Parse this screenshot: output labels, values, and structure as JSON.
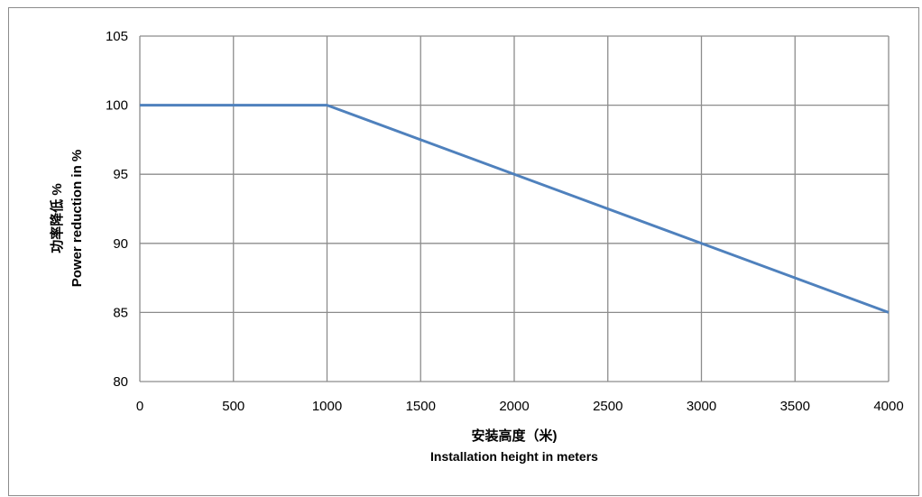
{
  "chart_data": {
    "type": "line",
    "title": "",
    "xlabel": "安装高度（米)",
    "xlabel_en": "Installation height in meters",
    "ylabel": "功率降低 %",
    "ylabel_en": "Power reduction in %",
    "xlim": [
      0,
      4000
    ],
    "ylim": [
      80,
      105
    ],
    "x_ticks": [
      0,
      500,
      1000,
      1500,
      2000,
      2500,
      3000,
      3500,
      4000
    ],
    "y_ticks": [
      80,
      85,
      90,
      95,
      100,
      105
    ],
    "grid": true,
    "legend": "none",
    "series": [
      {
        "x": [
          0,
          1000,
          4000
        ],
        "y": [
          100,
          100,
          85
        ],
        "color": "#4f81bd"
      }
    ],
    "colors": {
      "grid": "#8c8c8c",
      "line": "#4f81bd"
    }
  }
}
